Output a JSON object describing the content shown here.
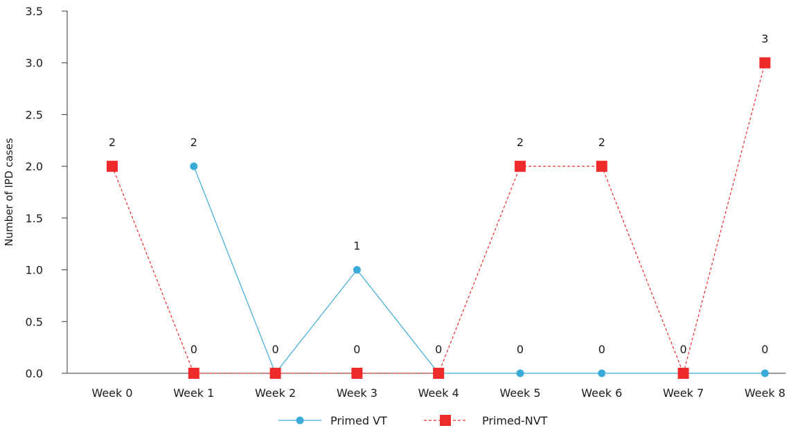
{
  "chart_data": {
    "type": "line",
    "ylabel": "Number of IPD cases",
    "xlabel": "",
    "ylim": [
      0,
      3.5
    ],
    "y_ticks": [
      "0.0",
      "0.5",
      "1.0",
      "1.5",
      "2.0",
      "2.5",
      "3.0",
      "3.5"
    ],
    "categories": [
      "Week 0",
      "Week 1",
      "Week 2",
      "Week 3",
      "Week 4",
      "Week 5",
      "Week 6",
      "Week 7",
      "Week 8"
    ],
    "grid": false,
    "legend_position": "bottom",
    "series": [
      {
        "name": "Primed VT",
        "marker": "circle",
        "line_style": "solid",
        "color": "#3AAAD9",
        "points": [
          {
            "x": "Week 1",
            "y": 2
          },
          {
            "x": "Week 2",
            "y": 0
          },
          {
            "x": "Week 3",
            "y": 1
          },
          {
            "x": "Week 4",
            "y": 0
          },
          {
            "x": "Week 5",
            "y": 0
          },
          {
            "x": "Week 6",
            "y": 0
          },
          {
            "x": "Week 7",
            "y": 0
          },
          {
            "x": "Week 8",
            "y": 0
          }
        ]
      },
      {
        "name": "Primed-NVT",
        "marker": "square",
        "line_style": "dashed",
        "color": "#EE2A2A",
        "points": [
          {
            "x": "Week 0",
            "y": 2
          },
          {
            "x": "Week 1",
            "y": 0
          },
          {
            "x": "Week 2",
            "y": 0
          },
          {
            "x": "Week 3",
            "y": 0
          },
          {
            "x": "Week 4",
            "y": 0
          },
          {
            "x": "Week 5",
            "y": 2
          },
          {
            "x": "Week 6",
            "y": 2
          },
          {
            "x": "Week 7",
            "y": 0
          },
          {
            "x": "Week 8",
            "y": 3
          }
        ]
      }
    ],
    "data_labels": [
      {
        "x": "Week 0",
        "text": "2"
      },
      {
        "x": "Week 1",
        "text": "2"
      },
      {
        "x": "Week 1",
        "text": "0"
      },
      {
        "x": "Week 2",
        "text": "0"
      },
      {
        "x": "Week 3",
        "text": "1"
      },
      {
        "x": "Week 3",
        "text": "0"
      },
      {
        "x": "Week 4",
        "text": "0"
      },
      {
        "x": "Week 5",
        "text": "2"
      },
      {
        "x": "Week 5",
        "text": "0"
      },
      {
        "x": "Week 6",
        "text": "2"
      },
      {
        "x": "Week 6",
        "text": "0"
      },
      {
        "x": "Week 7",
        "text": "0"
      },
      {
        "x": "Week 8",
        "text": "3"
      },
      {
        "x": "Week 8",
        "text": "0"
      }
    ]
  }
}
